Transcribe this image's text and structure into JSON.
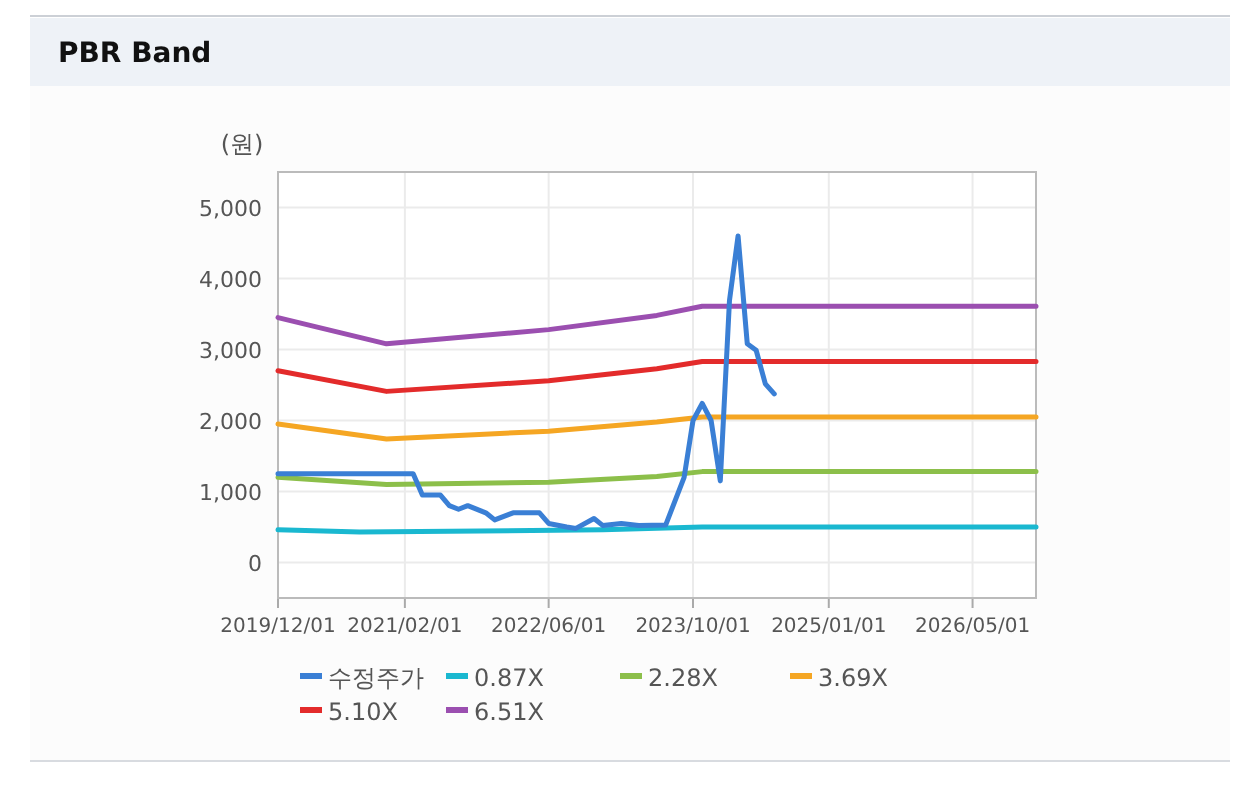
{
  "chart_data": {
    "type": "line",
    "title": "PBR Band",
    "ylabel": "(원)",
    "xlim": [
      "2019-12-01",
      "2026-12-01"
    ],
    "xticks": [
      {
        "value": "2019-12-01",
        "label": "2019/12/01"
      },
      {
        "value": "2021-02-01",
        "label": "2021/02/01"
      },
      {
        "value": "2022-06-01",
        "label": "2022/06/01"
      },
      {
        "value": "2023-10-01",
        "label": "2023/10/01"
      },
      {
        "value": "2025-01-01",
        "label": "2025/01/01"
      },
      {
        "value": "2026-05-01",
        "label": "2026/05/01"
      }
    ],
    "ylim": [
      -500,
      5500
    ],
    "yticks": [
      {
        "value": 0,
        "label": "0"
      },
      {
        "value": 1000,
        "label": "1,000"
      },
      {
        "value": 2000,
        "label": "2,000"
      },
      {
        "value": 3000,
        "label": "3,000"
      },
      {
        "value": 4000,
        "label": "4,000"
      },
      {
        "value": 5000,
        "label": "5,000"
      }
    ],
    "grid": true,
    "legend": "bottom",
    "series": [
      {
        "name": "수정주가",
        "color": "#3a7fd5",
        "x": [
          "2019-12",
          "2021-03",
          "2021-04",
          "2021-06",
          "2021-07",
          "2021-08",
          "2021-09",
          "2021-11",
          "2021-12",
          "2022-02",
          "2022-05",
          "2022-06",
          "2022-08",
          "2022-09",
          "2022-11",
          "2022-12",
          "2023-02",
          "2023-04",
          "2023-07",
          "2023-09",
          "2023-10",
          "2023-11",
          "2023-12",
          "2024-01",
          "2024-02",
          "2024-03",
          "2024-04",
          "2024-05",
          "2024-06",
          "2024-07"
        ],
        "values": [
          1250,
          1250,
          950,
          950,
          800,
          750,
          800,
          700,
          600,
          700,
          700,
          550,
          500,
          480,
          620,
          520,
          550,
          520,
          530,
          1200,
          2000,
          2240,
          2000,
          1150,
          3690,
          4600,
          3080,
          2990,
          2515,
          2375
        ]
      },
      {
        "name": "0.87X",
        "color": "#1ab8d0",
        "x": [
          "2019-12",
          "2020-09",
          "2022-12",
          "2023-11",
          "2026-12"
        ],
        "values": [
          460,
          430,
          460,
          500,
          500
        ]
      },
      {
        "name": "2.28X",
        "color": "#8cbf4a",
        "x": [
          "2019-12",
          "2020-12",
          "2022-06",
          "2023-06",
          "2023-11",
          "2026-12"
        ],
        "values": [
          1200,
          1100,
          1130,
          1210,
          1280,
          1280
        ]
      },
      {
        "name": "3.69X",
        "color": "#f5a623",
        "x": [
          "2019-12",
          "2020-12",
          "2022-06",
          "2023-06",
          "2023-11",
          "2026-12"
        ],
        "values": [
          1950,
          1740,
          1850,
          1980,
          2050,
          2050
        ]
      },
      {
        "name": "5.10X",
        "color": "#e32b2b",
        "x": [
          "2019-12",
          "2020-12",
          "2022-06",
          "2023-06",
          "2023-11",
          "2026-12"
        ],
        "values": [
          2700,
          2410,
          2560,
          2730,
          2830,
          2830
        ]
      },
      {
        "name": "6.51X",
        "color": "#9b4fb0",
        "x": [
          "2019-12",
          "2020-12",
          "2022-06",
          "2023-06",
          "2023-11",
          "2026-12"
        ],
        "values": [
          3450,
          3080,
          3280,
          3480,
          3610,
          3610
        ]
      }
    ]
  }
}
